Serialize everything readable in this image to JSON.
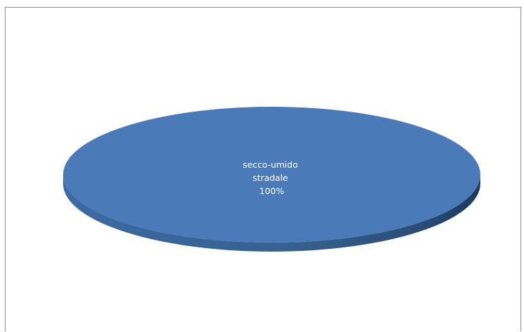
{
  "chart_data": {
    "type": "pie",
    "title": "",
    "style": "3d",
    "slices": [
      {
        "name": "secco-umido stradale",
        "label_lines": [
          "secco-umido",
          "stradale",
          "100%"
        ],
        "value": 100,
        "percent_label": "100%",
        "color": "#4a7ab7"
      }
    ],
    "legend": "none"
  }
}
